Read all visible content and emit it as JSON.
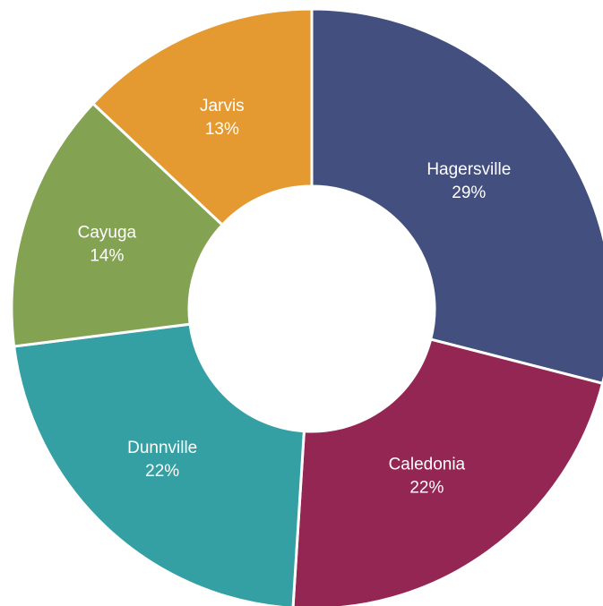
{
  "chart_data": {
    "type": "donut",
    "categories": [
      "Hagersville",
      "Caledonia",
      "Dunnville",
      "Cayuga",
      "Jarvis"
    ],
    "values": [
      29,
      22,
      22,
      14,
      13
    ],
    "value_labels": [
      "29%",
      "22%",
      "22%",
      "14%",
      "13%"
    ],
    "colors": [
      "#434f7e",
      "#932653",
      "#34a0a4",
      "#84a352",
      "#e49a30"
    ]
  }
}
